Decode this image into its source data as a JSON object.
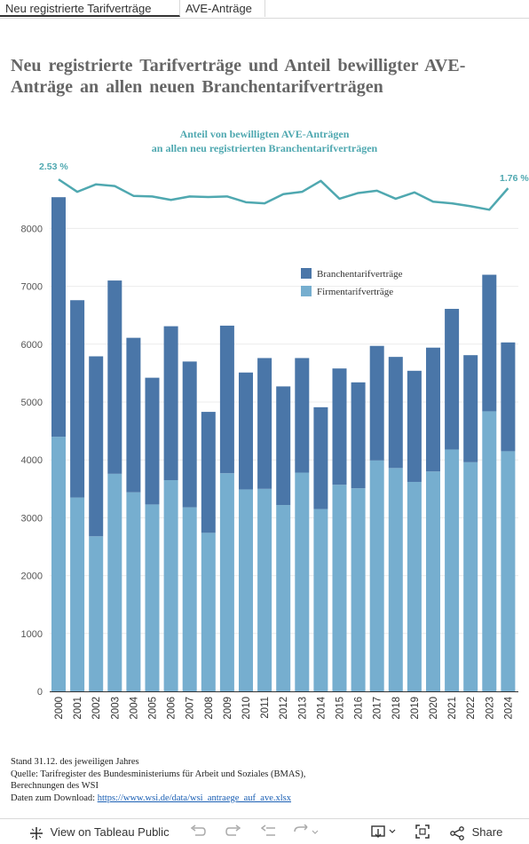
{
  "tabs": [
    {
      "label": "Neu registrierte Tarifverträge",
      "active": true
    },
    {
      "label": "AVE-Anträge",
      "active": false
    }
  ],
  "page_title": "Neu registrierte Tarifverträge und Anteil bewilligter AVE-Anträge an allen neuen Branchentarifverträgen",
  "chart_data": [
    {
      "type": "line",
      "title_line1": "Anteil von bewilligten AVE-Anträgen",
      "title_line2": "an allen neu registrierten Branchentarifverträgen",
      "x": [
        "2000",
        "2001",
        "2002",
        "2003",
        "2004",
        "2005",
        "2006",
        "2007",
        "2008",
        "2009",
        "2010",
        "2011",
        "2012",
        "2013",
        "2014",
        "2015",
        "2016",
        "2017",
        "2018",
        "2019",
        "2020",
        "2021",
        "2022",
        "2023",
        "2024"
      ],
      "values": [
        2.53,
        1.45,
        2.1,
        1.95,
        1.1,
        1.05,
        0.75,
        1.05,
        1.0,
        1.05,
        0.55,
        0.45,
        1.25,
        1.45,
        2.4,
        0.85,
        1.35,
        1.55,
        0.85,
        1.4,
        0.6,
        0.45,
        0.2,
        -0.1,
        1.76
      ],
      "start_label": "2.53 %",
      "end_label": "1.76 %",
      "color": "#4fa8b0"
    },
    {
      "type": "bar",
      "stacked": true,
      "categories": [
        "2000",
        "2001",
        "2002",
        "2003",
        "2004",
        "2005",
        "2006",
        "2007",
        "2008",
        "2009",
        "2010",
        "2011",
        "2012",
        "2013",
        "2014",
        "2015",
        "2016",
        "2017",
        "2018",
        "2019",
        "2020",
        "2021",
        "2022",
        "2023",
        "2024"
      ],
      "series": [
        {
          "name": "Firmentarifverträge",
          "color": "#76aecf",
          "values": [
            4400,
            3350,
            2680,
            3760,
            3440,
            3230,
            3650,
            3180,
            2740,
            3770,
            3490,
            3500,
            3220,
            3780,
            3150,
            3570,
            3510,
            3990,
            3860,
            3620,
            3800,
            4180,
            3960,
            4840,
            4150
          ]
        },
        {
          "name": "Branchentarifverträge",
          "color": "#4a76a8",
          "values": [
            4140,
            3410,
            3110,
            3340,
            2670,
            2190,
            2660,
            2520,
            2090,
            2550,
            2020,
            2260,
            2050,
            1980,
            1760,
            2010,
            1830,
            1980,
            1920,
            1920,
            2140,
            2430,
            1850,
            2360,
            1880
          ]
        }
      ],
      "y_ticks": [
        "0",
        "1000",
        "2000",
        "3000",
        "4000",
        "5000",
        "6000",
        "7000",
        "8000"
      ],
      "ylim": [
        0,
        8600
      ],
      "legend_position": "top-right"
    }
  ],
  "footer": {
    "line1": "Stand   31.12. des jeweiligen Jahres",
    "line2": "Quelle: Tarifregister des Bundesministeriums für Arbeit und Soziales (BMAS),",
    "line3": "Berechnungen des WSI",
    "line4_prefix": "Daten zum Download:  ",
    "link": "https://www.wsi.de/data/wsi_antraege_auf_ave.xlsx"
  },
  "toolbar": {
    "view_label": "View on Tableau Public",
    "share_label": "Share"
  }
}
